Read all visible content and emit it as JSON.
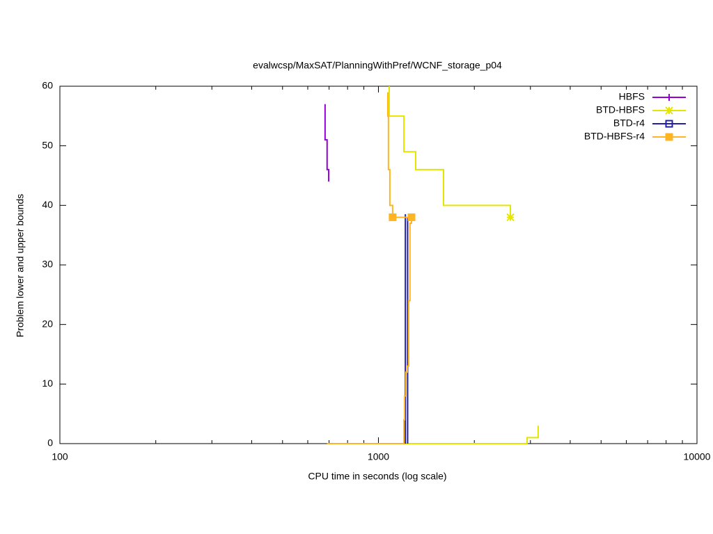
{
  "chart_data": {
    "type": "line",
    "title": "evalwcsp/MaxSAT/PlanningWithPref/WCNF_storage_p04",
    "x_label": "CPU time in seconds (log scale)",
    "y_label": "Problem lower and upper bounds",
    "xlog": true,
    "xlim": [
      100,
      10000
    ],
    "xticks": [
      100,
      1000,
      10000
    ],
    "xminorticks": [
      200,
      300,
      400,
      500,
      600,
      700,
      800,
      900,
      2000,
      3000,
      4000,
      5000,
      6000,
      7000,
      8000,
      9000
    ],
    "ylim": [
      0,
      60
    ],
    "yticks": [
      0,
      10,
      20,
      30,
      40,
      50,
      60
    ],
    "legend": "top-right",
    "series": [
      {
        "name": "HBFS",
        "color": "#9400d3",
        "marker": "plus",
        "x": [
          680,
          680,
          690,
          690,
          698,
          698
        ],
        "values": [
          57,
          51,
          51,
          46,
          46,
          44
        ]
      },
      {
        "name": "BTD-HBFS",
        "color": "#e5e500",
        "marker": "star",
        "x": [
          1081,
          1081,
          1202,
          1202,
          1309,
          1309,
          1601,
          1601,
          2596,
          2596,
          null,
          690,
          2929,
          2929,
          3173,
          3173
        ],
        "values": [
          60,
          55,
          55,
          49,
          49,
          46,
          46,
          40,
          40,
          38,
          null,
          0,
          0,
          1,
          1,
          3
        ],
        "points_x": [
          2596
        ],
        "points_y": [
          38
        ]
      },
      {
        "name": "BTD-r4",
        "color": "#2020a0",
        "marker": "square-open",
        "x": [
          1215,
          1215,
          null,
          1235,
          1235
        ],
        "values": [
          0,
          38.5,
          null,
          38,
          0
        ]
      },
      {
        "name": "BTD-HBFS-r4",
        "color": "#ffb521",
        "marker": "square",
        "x": [
          1070,
          1070,
          1075,
          1075,
          1086,
          1086,
          1108,
          1108,
          1270,
          null,
          690,
          1202,
          1202,
          1208,
          1208,
          1219,
          1219,
          1232,
          1232,
          1244,
          1244,
          1256,
          1256,
          1270,
          1270
        ],
        "values": [
          59,
          55,
          55,
          46,
          46,
          40,
          40,
          38,
          38,
          null,
          0,
          0,
          4,
          4,
          8,
          8,
          12,
          12,
          13,
          13,
          24,
          24,
          37,
          37,
          38
        ],
        "points_x": [
          1108,
          1270
        ],
        "points_y": [
          38,
          38
        ]
      }
    ]
  }
}
